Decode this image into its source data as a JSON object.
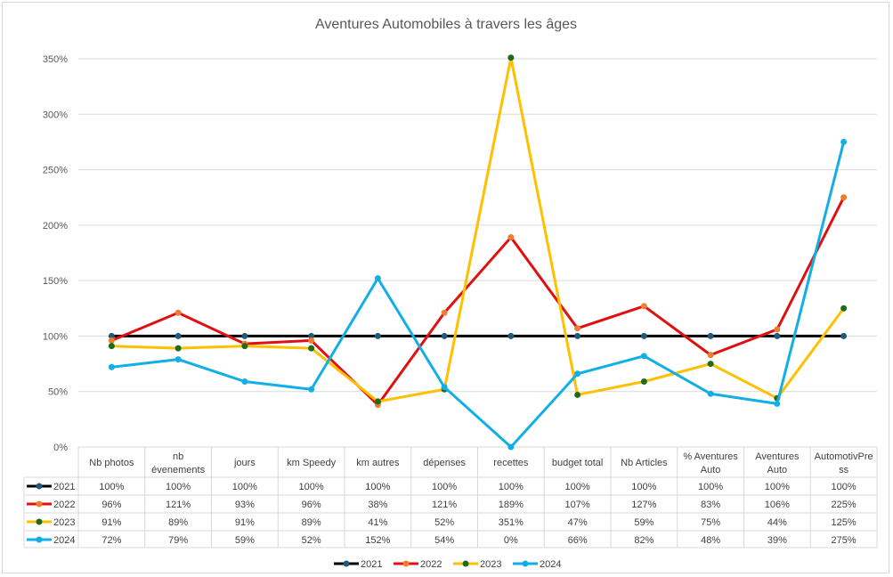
{
  "chart_data": {
    "type": "line",
    "title": "Aventures Automobiles à travers les âges",
    "xlabel": "",
    "ylabel": "",
    "ylim": [
      0,
      350
    ],
    "yticks": [
      "0%",
      "50%",
      "100%",
      "150%",
      "200%",
      "250%",
      "300%",
      "350%"
    ],
    "ytick_values": [
      0,
      50,
      100,
      150,
      200,
      250,
      300,
      350
    ],
    "grid": true,
    "legend_position": "bottom",
    "categories": [
      "Nb photos",
      "nb évenements",
      "jours",
      "km Speedy",
      "km autres",
      "dépenses",
      "recettes",
      "budget total",
      "Nb Articles",
      "% Aventures Auto",
      "Aventures Auto",
      "AutomotivPress"
    ],
    "series": [
      {
        "name": "2021",
        "line_color": "#000000",
        "marker_color": "#1f5a7a",
        "values": [
          100,
          100,
          100,
          100,
          100,
          100,
          100,
          100,
          100,
          100,
          100,
          100
        ],
        "labels": [
          "100%",
          "100%",
          "100%",
          "100%",
          "100%",
          "100%",
          "100%",
          "100%",
          "100%",
          "100%",
          "100%",
          "100%"
        ]
      },
      {
        "name": "2022",
        "line_color": "#e01010",
        "marker_color": "#ed7d31",
        "values": [
          96,
          121,
          93,
          96,
          38,
          121,
          189,
          107,
          127,
          83,
          106,
          225
        ],
        "labels": [
          "96%",
          "121%",
          "93%",
          "96%",
          "38%",
          "121%",
          "189%",
          "107%",
          "127%",
          "83%",
          "106%",
          "225%"
        ]
      },
      {
        "name": "2023",
        "line_color": "#ffc000",
        "marker_color": "#1e6b1e",
        "values": [
          91,
          89,
          91,
          89,
          41,
          52,
          351,
          47,
          59,
          75,
          44,
          125
        ],
        "labels": [
          "91%",
          "89%",
          "91%",
          "89%",
          "41%",
          "52%",
          "351%",
          "47%",
          "59%",
          "75%",
          "44%",
          "125%"
        ]
      },
      {
        "name": "2024",
        "line_color": "#12aee6",
        "marker_color": "#12aee6",
        "values": [
          72,
          79,
          59,
          52,
          152,
          54,
          0,
          66,
          82,
          48,
          39,
          275
        ],
        "labels": [
          "72%",
          "79%",
          "59%",
          "52%",
          "152%",
          "54%",
          "0%",
          "66%",
          "82%",
          "48%",
          "39%",
          "275%"
        ]
      }
    ]
  }
}
